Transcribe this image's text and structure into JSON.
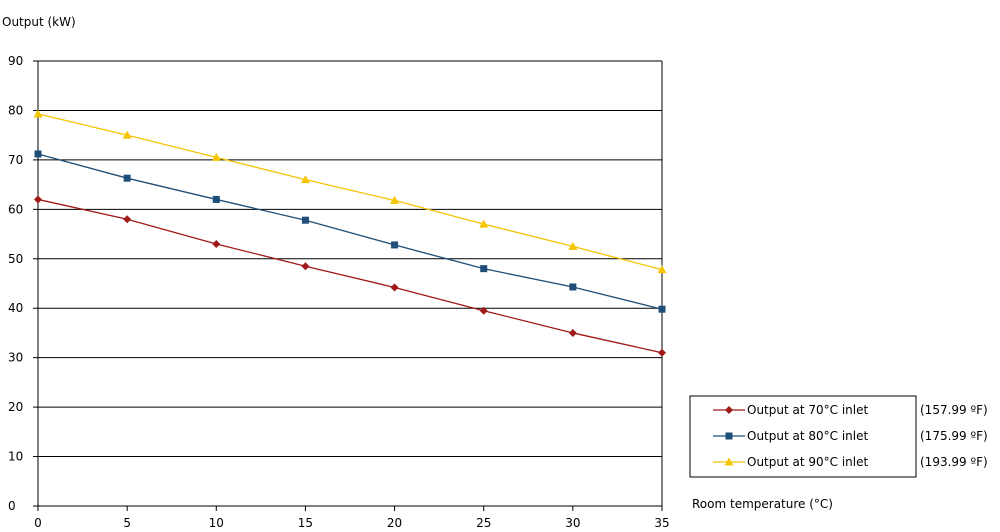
{
  "chart_data": {
    "type": "line",
    "ylabel": "Output (kW)",
    "xlabel": "Room temperature (°C)",
    "x": [
      0,
      5,
      10,
      15,
      20,
      25,
      30,
      35
    ],
    "xlim": [
      0,
      35
    ],
    "ylim": [
      0,
      90
    ],
    "y_ticks": [
      0,
      10,
      20,
      30,
      40,
      50,
      60,
      70,
      80,
      90
    ],
    "grid": true,
    "legend_placement": "bottom-right",
    "series": [
      {
        "name": "Output at 70°C inlet",
        "note": "(157.99 ºF)",
        "color": "#a01818",
        "marker": "diamond",
        "values": [
          62,
          58,
          53,
          48.5,
          44.2,
          39.5,
          35,
          31
        ]
      },
      {
        "name": "Output at 80°C inlet",
        "note": "(175.99 ºF)",
        "color": "#1f4e79",
        "marker": "square",
        "values": [
          71.2,
          66.3,
          62,
          57.8,
          52.8,
          48,
          44.3,
          39.8
        ]
      },
      {
        "name": "Output at 90°C inlet",
        "note": "(193.99 ºF)",
        "color": "#f5c400",
        "marker": "triangle",
        "values": [
          79.3,
          75,
          70.5,
          66,
          61.8,
          57,
          52.5,
          47.8
        ]
      }
    ]
  }
}
